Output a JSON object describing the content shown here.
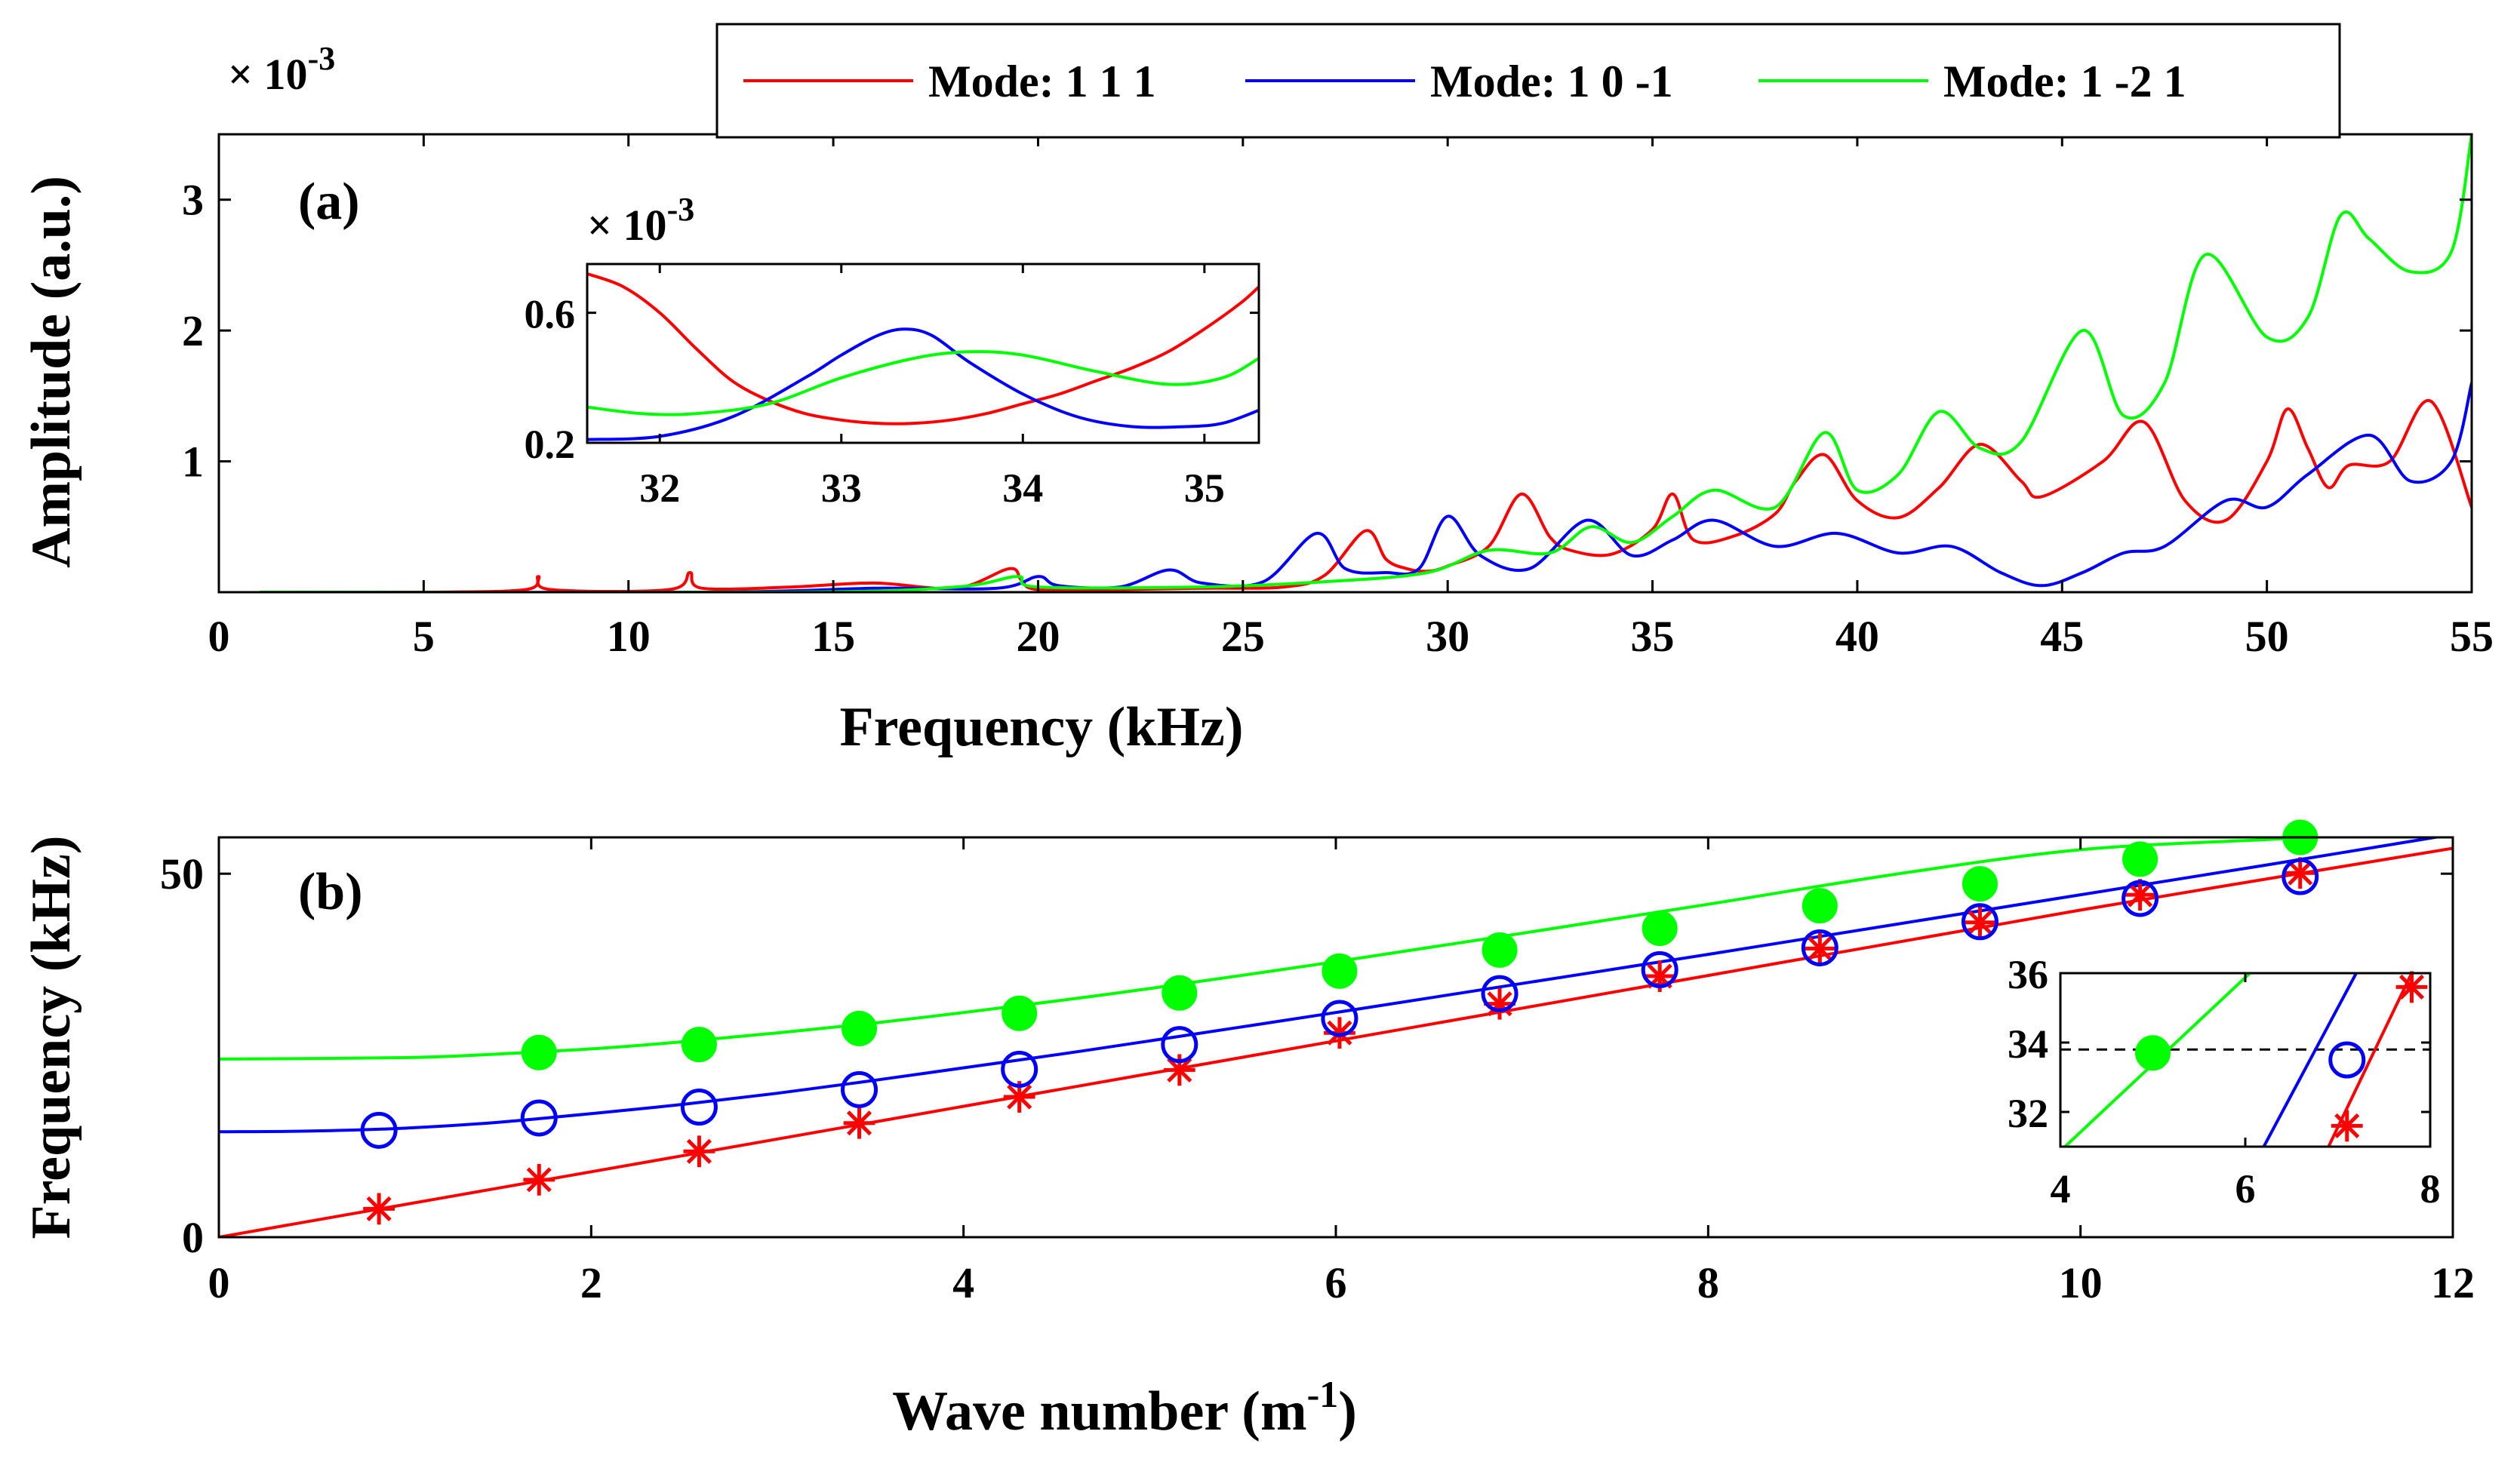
{
  "panel_a": {
    "panel_label": "(a)",
    "xlabel": "Frequency (kHz)",
    "ylabel": "Amplitude (a.u.)",
    "multiplier": "× 10",
    "multiplier_exp": "-3",
    "xlim": [
      0,
      55
    ],
    "ylim": [
      0,
      0.0035
    ],
    "xticks": [
      "0",
      "5",
      "10",
      "15",
      "20",
      "25",
      "30",
      "35",
      "40",
      "45",
      "50",
      "55"
    ],
    "yticks": [
      "1",
      "2",
      "3"
    ],
    "legend": [
      "Mode: 1 1 1",
      "Mode: 1 0 -1",
      "Mode: 1 -2 1"
    ],
    "inset": {
      "multiplier": "× 10",
      "multiplier_exp": "-3",
      "xlim": [
        31.6,
        35.3
      ],
      "ylim": [
        0.2,
        0.75
      ],
      "xticks": [
        "32",
        "33",
        "34",
        "35"
      ],
      "yticks": [
        "0.2",
        "0.6"
      ]
    }
  },
  "panel_b": {
    "panel_label": "(b)",
    "xlabel": "Wave number (m",
    "xlabel_exp": "-1",
    "xlabel_close": ")",
    "ylabel": "Frequency (kHz)",
    "xlim": [
      0,
      12
    ],
    "ylim": [
      0,
      55
    ],
    "xticks": [
      "0",
      "2",
      "4",
      "6",
      "8",
      "10",
      "12"
    ],
    "yticks": [
      "0",
      "50"
    ],
    "inset": {
      "xlim": [
        4,
        8
      ],
      "ylim": [
        31,
        36
      ],
      "xticks": [
        "4",
        "6",
        "8"
      ],
      "yticks": [
        "32",
        "34",
        "36"
      ],
      "dashed_y": 33.8
    }
  },
  "colors": {
    "mode_111": "#ff0000",
    "mode_10m1": "#0000ff",
    "mode_1m21": "#00ff00"
  },
  "chart_data": [
    {
      "type": "line",
      "xlabel": "Frequency (kHz)",
      "ylabel": "Amplitude (a.u.)",
      "xlim": [
        0,
        55
      ],
      "ylim": [
        0,
        0.0035
      ],
      "series": [
        {
          "name": "Mode: 1 1 1",
          "color": "#ff0000",
          "x": [
            1,
            5,
            7.5,
            7.8,
            8.1,
            11,
            11.5,
            11.8,
            14,
            16,
            18,
            19.3,
            19.6,
            20,
            22,
            24,
            26,
            27,
            28,
            28.5,
            29,
            29.5,
            30,
            31,
            31.8,
            32.5,
            33,
            34,
            35,
            35.5,
            36,
            37,
            38,
            38.5,
            39.2,
            40,
            41,
            42,
            43,
            44,
            44.5,
            46,
            47,
            48,
            49,
            50,
            50.5,
            51,
            51.5,
            52,
            53,
            54,
            55
          ],
          "y": [
            0,
            0,
            2e-05,
            0.00012,
            2e-05,
            2e-05,
            0.00015,
            3e-05,
            4e-05,
            7e-05,
            3e-05,
            0.00018,
            9e-05,
            2e-05,
            2e-05,
            3e-05,
            4e-05,
            0.00013,
            0.00047,
            0.00025,
            0.00018,
            0.00016,
            0.0002,
            0.00035,
            0.00075,
            0.00042,
            0.00032,
            0.00029,
            0.00048,
            0.00075,
            0.0004,
            0.00043,
            0.0006,
            0.00085,
            0.00105,
            0.0007,
            0.00057,
            0.0008,
            0.00113,
            0.00085,
            0.00073,
            0.001,
            0.0013,
            0.0007,
            0.00055,
            0.001,
            0.0014,
            0.0011,
            0.0008,
            0.00097,
            0.001,
            0.00146,
            0.00065
          ]
        },
        {
          "name": "Mode: 1 0 -1",
          "color": "#0000ff",
          "x": [
            1,
            12,
            16,
            19,
            20,
            20.5,
            22,
            23.2,
            24,
            25.5,
            26.8,
            27.5,
            28.5,
            29.3,
            30,
            30.8,
            32,
            33.4,
            34.5,
            35.5,
            36.5,
            38,
            39.5,
            41,
            42.3,
            43.5,
            44.5,
            45.5,
            46.5,
            47.5,
            49,
            50,
            51,
            52.5,
            53.5,
            54.5,
            55
          ],
          "y": [
            0,
            0,
            3e-05,
            3e-05,
            0.00012,
            5e-05,
            4e-05,
            0.00017,
            7e-05,
            8e-05,
            0.00045,
            0.00018,
            0.00015,
            0.00018,
            0.00058,
            0.00028,
            0.00018,
            0.00055,
            0.00028,
            0.0004,
            0.00055,
            0.00035,
            0.00045,
            0.0003,
            0.00035,
            0.00015,
            5e-05,
            0.00015,
            0.0003,
            0.00035,
            0.0007,
            0.00065,
            0.0009,
            0.0012,
            0.00085,
            0.001,
            0.0016
          ]
        },
        {
          "name": "Mode: 1 -2 1",
          "color": "#00ff00",
          "x": [
            1,
            14,
            18,
            19.5,
            20,
            24,
            27,
            29.5,
            31,
            32.5,
            33.5,
            34.5,
            35.5,
            36.5,
            38,
            39.2,
            40,
            41,
            42,
            43,
            44,
            45.5,
            46.5,
            47.5,
            48.5,
            50,
            51,
            51.8,
            52.5,
            53.5,
            54.5,
            55
          ],
          "y": [
            0,
            0,
            4e-05,
            0.00012,
            4e-05,
            4e-05,
            8e-05,
            0.00015,
            0.00032,
            0.0003,
            0.0005,
            0.00038,
            0.00058,
            0.00078,
            0.00065,
            0.00122,
            0.00078,
            0.0009,
            0.00138,
            0.0011,
            0.00115,
            0.002,
            0.00135,
            0.0016,
            0.00258,
            0.00195,
            0.0021,
            0.00288,
            0.0027,
            0.00245,
            0.0026,
            0.0035
          ]
        }
      ]
    },
    {
      "type": "line",
      "xlim": [
        31.6,
        35.3
      ],
      "ylim": [
        0.2,
        0.75
      ],
      "series": [
        {
          "name": "Mode: 1 1 1",
          "color": "#ff0000",
          "x": [
            31.6,
            31.8,
            32,
            32.2,
            32.4,
            32.6,
            32.8,
            33,
            33.2,
            33.4,
            33.6,
            33.8,
            34,
            34.2,
            34.4,
            34.6,
            34.8,
            35,
            35.2,
            35.3
          ],
          "y": [
            0.72,
            0.68,
            0.6,
            0.49,
            0.39,
            0.33,
            0.29,
            0.27,
            0.26,
            0.26,
            0.27,
            0.29,
            0.32,
            0.35,
            0.39,
            0.43,
            0.48,
            0.55,
            0.63,
            0.68
          ]
        },
        {
          "name": "Mode: 1 0 -1",
          "color": "#0000ff",
          "x": [
            31.6,
            32,
            32.4,
            32.8,
            33,
            33.2,
            33.35,
            33.5,
            33.7,
            34,
            34.3,
            34.6,
            34.9,
            35.1,
            35.3
          ],
          "y": [
            0.21,
            0.22,
            0.28,
            0.4,
            0.47,
            0.53,
            0.55,
            0.53,
            0.45,
            0.35,
            0.28,
            0.25,
            0.25,
            0.26,
            0.3
          ]
        },
        {
          "name": "Mode: 1 -2 1",
          "color": "#00ff00",
          "x": [
            31.6,
            31.9,
            32.2,
            32.6,
            33,
            33.4,
            33.7,
            34,
            34.4,
            34.8,
            35.1,
            35.3
          ],
          "y": [
            0.31,
            0.29,
            0.29,
            0.32,
            0.4,
            0.46,
            0.48,
            0.47,
            0.42,
            0.38,
            0.4,
            0.46
          ]
        }
      ]
    },
    {
      "type": "scatter",
      "xlabel": "Wave number (m-1)",
      "ylabel": "Frequency (kHz)",
      "xlim": [
        0,
        12
      ],
      "ylim": [
        0,
        55
      ],
      "lines": [
        {
          "name": "Mode: 1 1 1",
          "color": "#ff0000",
          "x": [
            0,
            2,
            4,
            6,
            8,
            10,
            12
          ],
          "y": [
            0,
            9,
            18,
            27,
            36,
            45,
            53.5
          ]
        },
        {
          "name": "Mode: 1 0 -1",
          "color": "#0000ff",
          "x": [
            0,
            0.5,
            1,
            1.5,
            2,
            2.5,
            3,
            3.5,
            4,
            4.5,
            5,
            6,
            7,
            8,
            9,
            10,
            11,
            12
          ],
          "y": [
            14.5,
            14.6,
            15,
            15.8,
            17,
            18.3,
            19.8,
            21.5,
            23.3,
            25.1,
            27,
            30.9,
            34.9,
            38.9,
            43,
            47.1,
            51.2,
            55.4
          ]
        },
        {
          "name": "Mode: 1 -2 1",
          "color": "#00ff00",
          "x": [
            0,
            1,
            1.5,
            2,
            2.5,
            3,
            3.5,
            4,
            4.5,
            5,
            6,
            7,
            8,
            9,
            10,
            11,
            11.2
          ],
          "y": [
            24.5,
            24.7,
            25.2,
            25.9,
            26.9,
            28.1,
            29.4,
            30.9,
            32.5,
            34.2,
            37.9,
            41.8,
            45.8,
            49.9,
            53.3,
            54.7,
            55
          ]
        }
      ],
      "markers": [
        {
          "name": "Mode: 1 1 1",
          "marker": "star",
          "color": "#ff0000",
          "x": [
            0.86,
            1.72,
            2.58,
            3.44,
            4.3,
            5.16,
            6.02,
            6.88,
            7.74,
            8.6,
            9.46,
            10.32,
            11.18
          ],
          "y": [
            3.9,
            7.9,
            11.8,
            15.7,
            19.3,
            23,
            28.1,
            32.1,
            35.9,
            39.7,
            43.3,
            47.1,
            50.1
          ]
        },
        {
          "name": "Mode: 1 0 -1",
          "marker": "circle-open",
          "color": "#0000ff",
          "x": [
            0.86,
            1.72,
            2.58,
            3.44,
            4.3,
            5.16,
            6.02,
            6.88,
            7.74,
            8.6,
            9.46,
            10.32,
            11.18
          ],
          "y": [
            14.7,
            16.4,
            17.9,
            20.3,
            23.1,
            26.5,
            30.1,
            33.5,
            36.8,
            39.8,
            43.4,
            46.6,
            49.6
          ]
        },
        {
          "name": "Mode: 1 -2 1",
          "marker": "circle-filled",
          "color": "#00ff00",
          "x": [
            1.72,
            2.58,
            3.44,
            4.3,
            5.16,
            6.02,
            6.88,
            7.74,
            8.6,
            9.46,
            10.32,
            11.18
          ],
          "y": [
            25.4,
            26.5,
            28.7,
            30.8,
            33.6,
            36.6,
            39.5,
            42.5,
            45.6,
            48.6,
            52,
            55
          ]
        }
      ]
    },
    {
      "type": "scatter",
      "xlim": [
        4,
        8
      ],
      "ylim": [
        31,
        36
      ],
      "lines": [
        {
          "name": "Mode: 1 1 1",
          "color": "#ff0000",
          "x": [
            6.9,
            7.8
          ],
          "y": [
            31,
            36
          ]
        },
        {
          "name": "Mode: 1 0 -1",
          "color": "#0000ff",
          "x": [
            6.2,
            7.2
          ],
          "y": [
            31,
            36
          ]
        },
        {
          "name": "Mode: 1 -2 1",
          "color": "#00ff00",
          "x": [
            4.05,
            6.05
          ],
          "y": [
            31,
            36
          ]
        }
      ],
      "markers": [
        {
          "name": "Mode: 1 1 1",
          "marker": "star",
          "color": "#ff0000",
          "x": [
            7.1,
            7.8
          ],
          "y": [
            31.6,
            35.6
          ]
        },
        {
          "name": "Mode: 1 0 -1",
          "marker": "circle-open",
          "color": "#0000ff",
          "x": [
            7.1
          ],
          "y": [
            33.5
          ]
        },
        {
          "name": "Mode: 1 -2 1",
          "marker": "circle-filled",
          "color": "#00ff00",
          "x": [
            5.0
          ],
          "y": [
            33.7
          ]
        }
      ]
    }
  ]
}
